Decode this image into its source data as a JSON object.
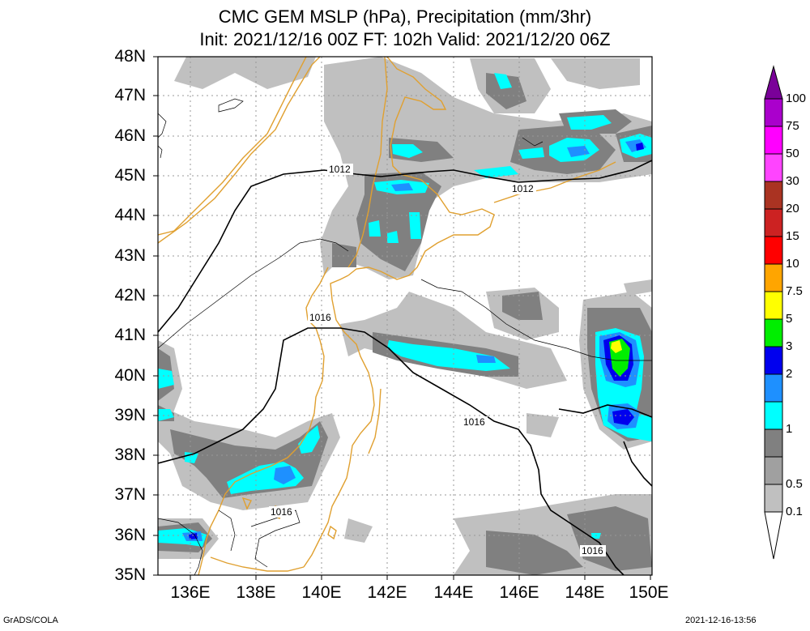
{
  "title": {
    "line1": "CMC GEM MSLP (hPa), Precipitation (mm/3hr)",
    "line2": "Init: 2021/12/16 00Z  FT: 102h  Valid: 2021/12/20 06Z"
  },
  "lat_labels": [
    "48N",
    "47N",
    "46N",
    "45N",
    "44N",
    "43N",
    "42N",
    "41N",
    "40N",
    "39N",
    "38N",
    "37N",
    "36N",
    "35N"
  ],
  "lon_labels": [
    "136E",
    "138E",
    "140E",
    "142E",
    "144E",
    "146E",
    "148E",
    "150E"
  ],
  "isobar_labels": [
    "1012",
    "1012",
    "1016",
    "1016",
    "1016",
    "1016"
  ],
  "colorbar": {
    "labels": [
      "100",
      "75",
      "50",
      "30",
      "20",
      "15",
      "10",
      "7.5",
      "5",
      "3",
      "2",
      "1",
      "0.5",
      "0.1"
    ],
    "colors": [
      "#7a0099",
      "#aa00cc",
      "#ff00ff",
      "#aa3322",
      "#cc2222",
      "#ff0000",
      "#ffa500",
      "#ffff00",
      "#00ee00",
      "#0000ee",
      "#1e90ff",
      "#00ffff",
      "#808080",
      "#c0c0c0",
      "#ffffff"
    ]
  },
  "footer": {
    "left": "GrADS/COLA",
    "right": "2021-12-16-13:56"
  }
}
